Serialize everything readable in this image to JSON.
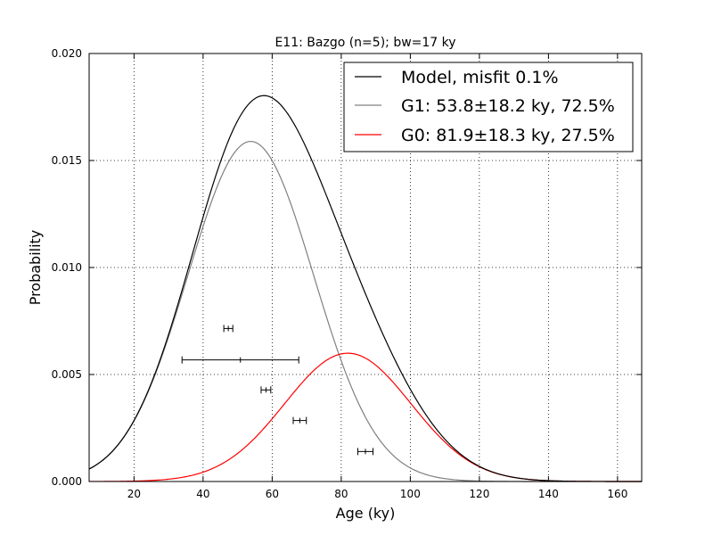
{
  "chart_data": {
    "type": "line",
    "title": "E11: Bazgo (n=5); bw=17 ky",
    "xlabel": "Age (ky)",
    "ylabel": "Probability",
    "xlim": [
      7,
      167
    ],
    "ylim": [
      0,
      0.02
    ],
    "xticks": [
      "20",
      "40",
      "60",
      "80",
      "100",
      "120",
      "140",
      "160"
    ],
    "yticks": [
      "0.000",
      "0.005",
      "0.010",
      "0.015",
      "0.020"
    ],
    "grid": true,
    "legend_position": "top-right",
    "series": [
      {
        "name": "Model, misfit 0.1%",
        "color": "#000000",
        "components": [
          "G1",
          "G0"
        ]
      },
      {
        "name": "G1: 53.8±18.2 ky, 72.5%",
        "id": "G1",
        "color": "#808080",
        "mean": 53.8,
        "sd": 18.2,
        "weight": 0.725
      },
      {
        "name": "G0: 81.9±18.3 ky, 27.5%",
        "id": "G0",
        "color": "#ff0000",
        "mean": 81.9,
        "sd": 18.3,
        "weight": 0.275
      }
    ],
    "samples": [
      {
        "age": 47.3,
        "err": 1.3,
        "y": 0.00715
      },
      {
        "age": 50.8,
        "err": 16.9,
        "y": 0.00568
      },
      {
        "age": 58.2,
        "err": 1.4,
        "y": 0.00428
      },
      {
        "age": 68.0,
        "err": 1.9,
        "y": 0.00285
      },
      {
        "age": 87.0,
        "err": 2.2,
        "y": 0.0014
      }
    ]
  }
}
